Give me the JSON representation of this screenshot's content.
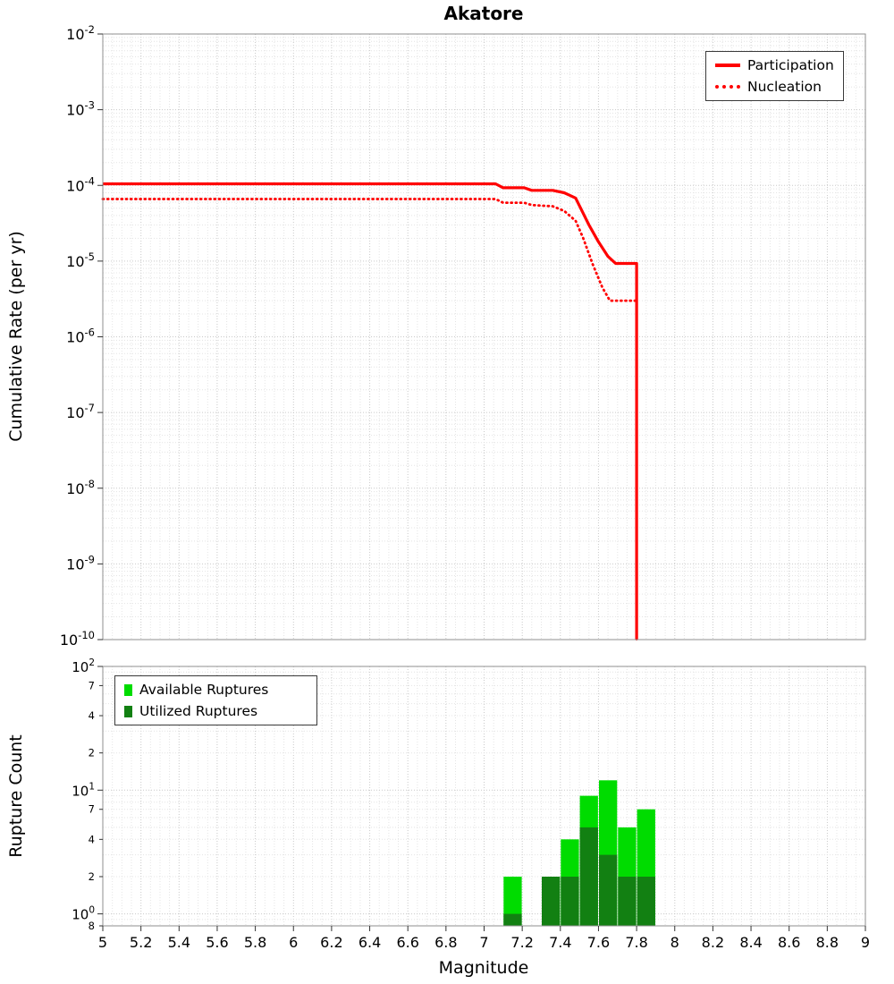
{
  "title": "Akatore",
  "axes": {
    "x_label": "Magnitude",
    "top_y_label": "Cumulative Rate (per yr)",
    "bottom_y_label": "Rupture Count"
  },
  "legend_top": {
    "participation": "Participation",
    "nucleation": "Nucleation"
  },
  "legend_bottom": {
    "available": "Available Ruptures",
    "utilized": "Utilized Ruptures"
  },
  "colors": {
    "line": "#ff0000",
    "available": "#00dc00",
    "utilized": "#128012",
    "grid_minor": "#e4e4e4",
    "grid_major": "#c9c9c9",
    "frame": "#8f8f8f",
    "tick": "#333333",
    "text": "#000000"
  },
  "chart_data": [
    {
      "type": "line",
      "title": "Akatore",
      "xlabel": "Magnitude",
      "ylabel": "Cumulative Rate (per yr)",
      "xlim": [
        5,
        9
      ],
      "ylim": [
        1e-10,
        0.01
      ],
      "grid": true,
      "legend_position": "top-right",
      "x_ticks": [
        5,
        5.2,
        5.4,
        5.6,
        5.8,
        6,
        6.2,
        6.4,
        6.6,
        6.8,
        7,
        7.2,
        7.4,
        7.6,
        7.8,
        8,
        8.2,
        8.4,
        8.6,
        8.8,
        9
      ],
      "y_ticks_exp": [
        -2,
        -3,
        -4,
        -5,
        -6,
        -7,
        -8,
        -9,
        -10
      ],
      "series": [
        {
          "name": "Participation",
          "style": "solid",
          "color": "#ff0000",
          "points": [
            [
              5.0,
              0.000105
            ],
            [
              7.06,
              0.000105
            ],
            [
              7.1,
              9.3e-05
            ],
            [
              7.21,
              9.3e-05
            ],
            [
              7.25,
              8.6e-05
            ],
            [
              7.36,
              8.6e-05
            ],
            [
              7.42,
              8e-05
            ],
            [
              7.48,
              6.8e-05
            ],
            [
              7.55,
              3e-05
            ],
            [
              7.6,
              1.8e-05
            ],
            [
              7.65,
              1.15e-05
            ],
            [
              7.69,
              9.3e-06
            ],
            [
              7.8,
              9.3e-06
            ],
            [
              7.8,
              1e-10
            ]
          ]
        },
        {
          "name": "Nucleation",
          "style": "dotted",
          "color": "#ff0000",
          "points": [
            [
              5.0,
              6.6e-05
            ],
            [
              7.06,
              6.6e-05
            ],
            [
              7.1,
              5.9e-05
            ],
            [
              7.21,
              5.9e-05
            ],
            [
              7.25,
              5.5e-05
            ],
            [
              7.36,
              5.3e-05
            ],
            [
              7.42,
              4.6e-05
            ],
            [
              7.48,
              3.4e-05
            ],
            [
              7.52,
              2e-05
            ],
            [
              7.57,
              9e-06
            ],
            [
              7.62,
              4.5e-06
            ],
            [
              7.66,
              3e-06
            ],
            [
              7.8,
              3e-06
            ],
            [
              7.8,
              1e-10
            ]
          ]
        }
      ]
    },
    {
      "type": "bar",
      "xlabel": "Magnitude",
      "ylabel": "Rupture Count",
      "xlim": [
        5,
        9
      ],
      "ylim": [
        0.8,
        100
      ],
      "grid": true,
      "legend_position": "top-left",
      "bin_width": 0.1,
      "categories": [
        7.15,
        7.35,
        7.45,
        7.55,
        7.65,
        7.75,
        7.85
      ],
      "series": [
        {
          "name": "Available Ruptures",
          "color": "#00dc00",
          "values": [
            2,
            2,
            4,
            9,
            12,
            5,
            7
          ]
        },
        {
          "name": "Utilized Ruptures",
          "color": "#128012",
          "values": [
            1,
            2,
            2,
            5,
            3,
            2,
            2
          ]
        }
      ],
      "y_ticks": [
        {
          "v": 100,
          "exp": 2
        },
        {
          "v": 70,
          "t": "7"
        },
        {
          "v": 40,
          "t": "4"
        },
        {
          "v": 20,
          "t": "2"
        },
        {
          "v": 10,
          "exp": 1
        },
        {
          "v": 7,
          "t": "7"
        },
        {
          "v": 4,
          "t": "4"
        },
        {
          "v": 2,
          "t": "2"
        },
        {
          "v": 1,
          "exp": 0
        },
        {
          "v": 0.8,
          "t": "8"
        }
      ]
    }
  ]
}
